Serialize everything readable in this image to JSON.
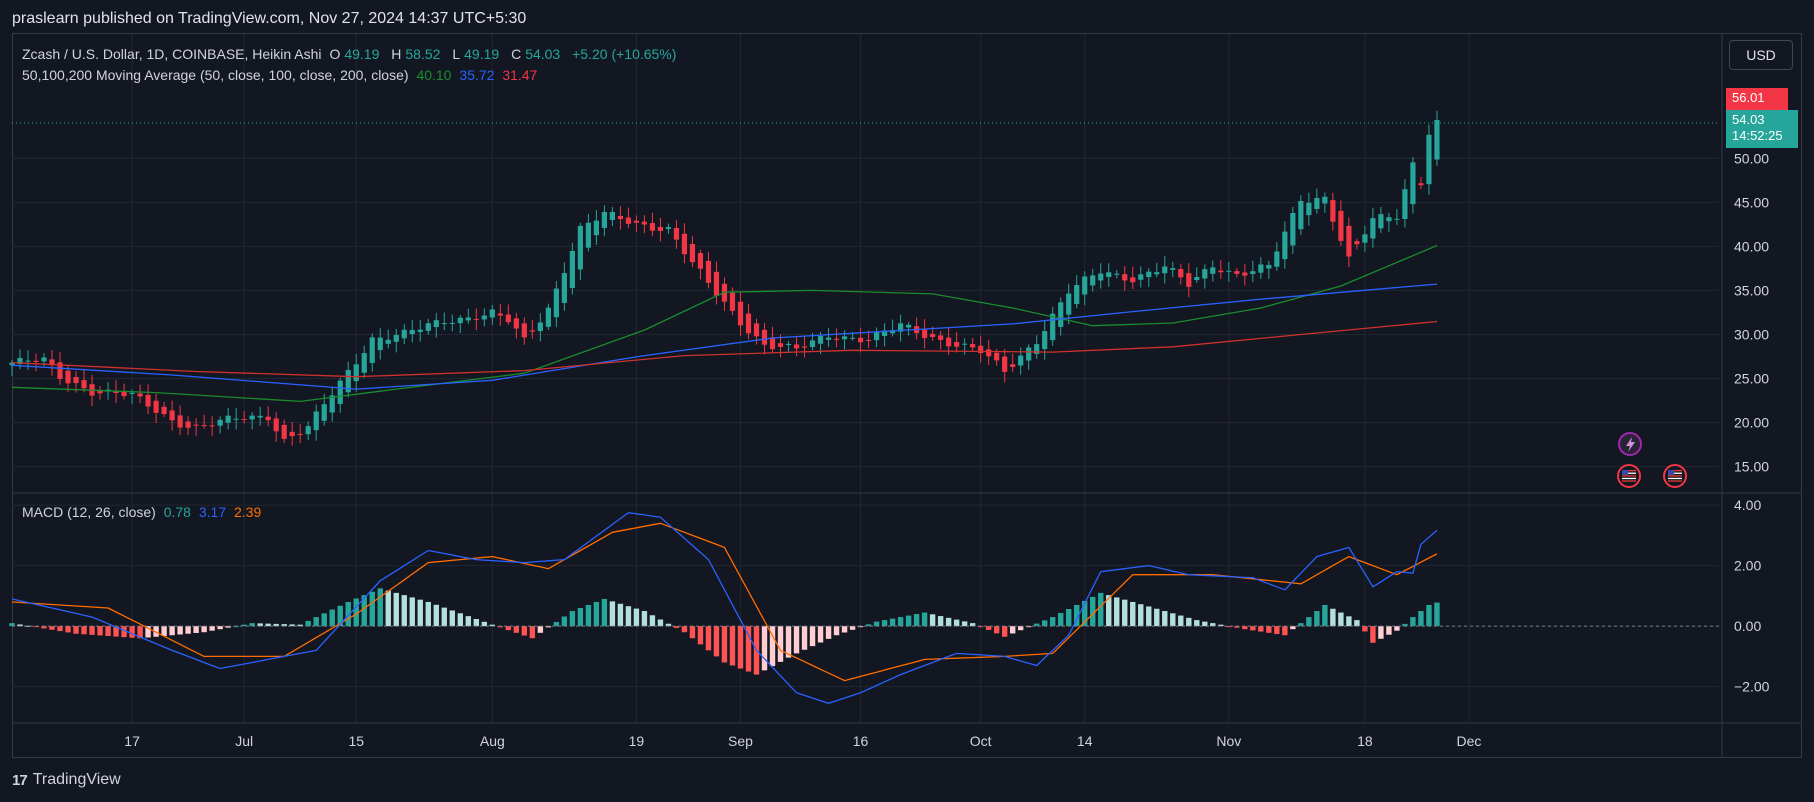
{
  "header": {
    "publish_line": "praslearn published on TradingView.com, Nov 27, 2024 14:37 UTC+5:30"
  },
  "legend": {
    "symbol": "Zcash / U.S. Dollar, 1D, COINBASE, Heikin Ashi",
    "o_label": "O",
    "o_value": "49.19",
    "h_label": "H",
    "h_value": "58.52",
    "l_label": "L",
    "l_value": "49.19",
    "c_label": "C",
    "c_value": "54.03",
    "change": "+5.20 (+10.65%)",
    "ma_label": "50,100,200 Moving Average (50, close, 100, close, 200, close)",
    "ma50": "40.10",
    "ma100": "35.72",
    "ma200": "31.47",
    "macd_label": "MACD (12, 26, close)",
    "hist_val": "0.78",
    "macd_val": "3.17",
    "signal_val": "2.39"
  },
  "currency_button": "USD",
  "price_tags": {
    "high": "56.01",
    "last": "54.03",
    "countdown": "14:52:25"
  },
  "brand": {
    "name": "TradingView",
    "logo_text": "17"
  },
  "colors": {
    "up": "#26a69a",
    "down": "#f23645",
    "ma50": "#1b8c2e",
    "ma100": "#2962ff",
    "ma200": "#d0312d",
    "macd": "#2962ff",
    "signal": "#ff6d00",
    "hist_up_strong": "#26a69a",
    "hist_up_weak": "#b2dfdb",
    "hist_down_strong": "#ff5252",
    "hist_down_weak": "#ffcdd2"
  },
  "chart_data": [
    {
      "type": "candlestick",
      "style": "Heikin Ashi",
      "ylim": [
        12,
        64
      ],
      "y_ticks": [
        15,
        20,
        25,
        30,
        35,
        40,
        45,
        50
      ],
      "x_ticks": [
        {
          "label": "17",
          "date": "2024-06-17"
        },
        {
          "label": "Jul",
          "date": "2024-07-01"
        },
        {
          "label": "15",
          "date": "2024-07-15"
        },
        {
          "label": "Aug",
          "date": "2024-08-01"
        },
        {
          "label": "19",
          "date": "2024-08-19"
        },
        {
          "label": "Sep",
          "date": "2024-09-01"
        },
        {
          "label": "16",
          "date": "2024-09-16"
        },
        {
          "label": "Oct",
          "date": "2024-10-01"
        },
        {
          "label": "14",
          "date": "2024-10-14"
        },
        {
          "label": "Nov",
          "date": "2024-11-01"
        },
        {
          "label": "18",
          "date": "2024-11-18"
        },
        {
          "label": "Dec",
          "date": "2024-12-01"
        }
      ],
      "date_range": [
        "2024-06-02",
        "2024-12-06"
      ],
      "first_date": "2024-06-02",
      "close_points": [
        [
          "2024-06-02",
          26.8
        ],
        [
          "2024-06-06",
          27.0
        ],
        [
          "2024-06-08",
          25.2
        ],
        [
          "2024-06-12",
          23.6
        ],
        [
          "2024-06-17",
          23.0
        ],
        [
          "2024-06-22",
          20.3
        ],
        [
          "2024-06-25",
          19.4
        ],
        [
          "2024-06-30",
          20.4
        ],
        [
          "2024-07-04",
          20.8
        ],
        [
          "2024-07-06",
          18.0
        ],
        [
          "2024-07-09",
          19.4
        ],
        [
          "2024-07-13",
          24.5
        ],
        [
          "2024-07-17",
          29.6
        ],
        [
          "2024-07-21",
          30.0
        ],
        [
          "2024-07-26",
          31.6
        ],
        [
          "2024-08-01",
          32.4
        ],
        [
          "2024-08-03",
          31.5
        ],
        [
          "2024-08-05",
          29.2
        ],
        [
          "2024-08-08",
          33.0
        ],
        [
          "2024-08-12",
          42.0
        ],
        [
          "2024-08-15",
          43.6
        ],
        [
          "2024-08-19",
          42.6
        ],
        [
          "2024-08-23",
          42.0
        ],
        [
          "2024-08-26",
          38.0
        ],
        [
          "2024-08-29",
          34.6
        ],
        [
          "2024-09-01",
          31.5
        ],
        [
          "2024-09-04",
          28.8
        ],
        [
          "2024-09-08",
          28.2
        ],
        [
          "2024-09-12",
          30.0
        ],
        [
          "2024-09-17",
          29.4
        ],
        [
          "2024-09-21",
          31.0
        ],
        [
          "2024-09-26",
          29.4
        ],
        [
          "2024-10-01",
          28.0
        ],
        [
          "2024-10-04",
          25.8
        ],
        [
          "2024-10-08",
          29.4
        ],
        [
          "2024-10-12",
          34.8
        ],
        [
          "2024-10-16",
          37.2
        ],
        [
          "2024-10-20",
          36.4
        ],
        [
          "2024-10-24",
          37.6
        ],
        [
          "2024-10-27",
          35.6
        ],
        [
          "2024-10-30",
          38.0
        ],
        [
          "2024-11-02",
          36.8
        ],
        [
          "2024-11-06",
          37.6
        ],
        [
          "2024-11-10",
          45.4
        ],
        [
          "2024-11-13",
          45.6
        ],
        [
          "2024-11-16",
          38.4
        ],
        [
          "2024-11-19",
          43.0
        ],
        [
          "2024-11-22",
          43.6
        ],
        [
          "2024-11-24",
          49.5
        ],
        [
          "2024-11-25",
          47.4
        ],
        [
          "2024-11-26",
          53.0
        ],
        [
          "2024-11-27",
          54.03
        ]
      ],
      "series": [
        {
          "name": "50",
          "points": [
            [
              "2024-06-02",
              24.0
            ],
            [
              "2024-06-20",
              23.4
            ],
            [
              "2024-07-08",
              22.4
            ],
            [
              "2024-07-20",
              23.8
            ],
            [
              "2024-08-05",
              25.6
            ],
            [
              "2024-08-20",
              30.5
            ],
            [
              "2024-08-30",
              34.8
            ],
            [
              "2024-09-10",
              35.0
            ],
            [
              "2024-09-25",
              34.6
            ],
            [
              "2024-10-05",
              33.0
            ],
            [
              "2024-10-15",
              31.0
            ],
            [
              "2024-10-25",
              31.3
            ],
            [
              "2024-11-05",
              33.0
            ],
            [
              "2024-11-15",
              35.5
            ],
            [
              "2024-11-27",
              40.1
            ]
          ]
        },
        {
          "name": "100",
          "points": [
            [
              "2024-06-02",
              26.5
            ],
            [
              "2024-06-22",
              25.4
            ],
            [
              "2024-07-15",
              23.8
            ],
            [
              "2024-08-01",
              24.8
            ],
            [
              "2024-08-20",
              27.6
            ],
            [
              "2024-09-05",
              29.6
            ],
            [
              "2024-09-20",
              30.4
            ],
            [
              "2024-10-05",
              31.2
            ],
            [
              "2024-10-20",
              32.6
            ],
            [
              "2024-11-05",
              34.0
            ],
            [
              "2024-11-27",
              35.72
            ]
          ]
        },
        {
          "name": "200",
          "points": [
            [
              "2024-06-02",
              26.8
            ],
            [
              "2024-06-25",
              25.8
            ],
            [
              "2024-07-15",
              25.2
            ],
            [
              "2024-08-05",
              25.9
            ],
            [
              "2024-08-25",
              27.6
            ],
            [
              "2024-09-15",
              28.2
            ],
            [
              "2024-10-10",
              28.0
            ],
            [
              "2024-10-25",
              28.6
            ],
            [
              "2024-11-10",
              30.0
            ],
            [
              "2024-11-27",
              31.47
            ]
          ]
        }
      ]
    },
    {
      "type": "macd",
      "ylim": [
        -3.2,
        4.4
      ],
      "y_ticks": [
        4.0,
        2.0,
        0.0,
        -2.0
      ],
      "y_tick_labels": [
        "4.00",
        "2.00",
        "0.00",
        "−2.00"
      ],
      "series": [
        {
          "name": "MACD",
          "points": [
            [
              "2024-06-02",
              0.9
            ],
            [
              "2024-06-12",
              0.3
            ],
            [
              "2024-06-22",
              -0.8
            ],
            [
              "2024-06-28",
              -1.4
            ],
            [
              "2024-07-06",
              -1.0
            ],
            [
              "2024-07-10",
              -0.8
            ],
            [
              "2024-07-18",
              1.5
            ],
            [
              "2024-07-24",
              2.5
            ],
            [
              "2024-07-30",
              2.2
            ],
            [
              "2024-08-05",
              2.1
            ],
            [
              "2024-08-10",
              2.2
            ],
            [
              "2024-08-18",
              3.75
            ],
            [
              "2024-08-22",
              3.6
            ],
            [
              "2024-08-28",
              2.2
            ],
            [
              "2024-09-03",
              -0.8
            ],
            [
              "2024-09-08",
              -2.2
            ],
            [
              "2024-09-12",
              -2.55
            ],
            [
              "2024-09-16",
              -2.2
            ],
            [
              "2024-09-21",
              -1.6
            ],
            [
              "2024-09-28",
              -0.9
            ],
            [
              "2024-10-04",
              -1.0
            ],
            [
              "2024-10-08",
              -1.3
            ],
            [
              "2024-10-12",
              -0.3
            ],
            [
              "2024-10-16",
              1.8
            ],
            [
              "2024-10-22",
              2.0
            ],
            [
              "2024-10-27",
              1.7
            ],
            [
              "2024-11-04",
              1.6
            ],
            [
              "2024-11-08",
              1.2
            ],
            [
              "2024-11-12",
              2.3
            ],
            [
              "2024-11-16",
              2.6
            ],
            [
              "2024-11-19",
              1.3
            ],
            [
              "2024-11-22",
              1.8
            ],
            [
              "2024-11-24",
              1.75
            ],
            [
              "2024-11-25",
              2.7
            ],
            [
              "2024-11-27",
              3.17
            ]
          ]
        },
        {
          "name": "Signal",
          "points": [
            [
              "2024-06-02",
              0.8
            ],
            [
              "2024-06-14",
              0.6
            ],
            [
              "2024-06-26",
              -1.0
            ],
            [
              "2024-07-06",
              -1.0
            ],
            [
              "2024-07-15",
              0.4
            ],
            [
              "2024-07-24",
              2.1
            ],
            [
              "2024-08-01",
              2.3
            ],
            [
              "2024-08-08",
              1.9
            ],
            [
              "2024-08-16",
              3.1
            ],
            [
              "2024-08-22",
              3.4
            ],
            [
              "2024-08-30",
              2.6
            ],
            [
              "2024-09-06",
              -0.8
            ],
            [
              "2024-09-14",
              -1.8
            ],
            [
              "2024-09-24",
              -1.1
            ],
            [
              "2024-10-04",
              -1.0
            ],
            [
              "2024-10-10",
              -0.9
            ],
            [
              "2024-10-20",
              1.7
            ],
            [
              "2024-10-30",
              1.7
            ],
            [
              "2024-11-10",
              1.4
            ],
            [
              "2024-11-16",
              2.3
            ],
            [
              "2024-11-22",
              1.7
            ],
            [
              "2024-11-27",
              2.39
            ]
          ]
        },
        {
          "name": "Histogram",
          "points": [
            [
              "2024-06-02",
              0.1
            ],
            [
              "2024-06-10",
              -0.25
            ],
            [
              "2024-06-18",
              -0.4
            ],
            [
              "2024-06-26",
              -0.2
            ],
            [
              "2024-07-02",
              0.1
            ],
            [
              "2024-07-08",
              0.05
            ],
            [
              "2024-07-14",
              0.8
            ],
            [
              "2024-07-18",
              1.25
            ],
            [
              "2024-07-24",
              0.8
            ],
            [
              "2024-08-01",
              0.05
            ],
            [
              "2024-08-06",
              -0.4
            ],
            [
              "2024-08-11",
              0.5
            ],
            [
              "2024-08-15",
              0.9
            ],
            [
              "2024-08-20",
              0.5
            ],
            [
              "2024-08-25",
              -0.2
            ],
            [
              "2024-08-30",
              -1.2
            ],
            [
              "2024-09-03",
              -1.6
            ],
            [
              "2024-09-08",
              -0.9
            ],
            [
              "2024-09-13",
              -0.3
            ],
            [
              "2024-09-18",
              0.15
            ],
            [
              "2024-09-24",
              0.45
            ],
            [
              "2024-09-30",
              0.1
            ],
            [
              "2024-10-04",
              -0.35
            ],
            [
              "2024-10-10",
              0.3
            ],
            [
              "2024-10-16",
              1.1
            ],
            [
              "2024-10-22",
              0.65
            ],
            [
              "2024-10-28",
              0.2
            ],
            [
              "2024-11-03",
              -0.1
            ],
            [
              "2024-11-08",
              -0.3
            ],
            [
              "2024-11-13",
              0.7
            ],
            [
              "2024-11-17",
              0.2
            ],
            [
              "2024-11-19",
              -0.55
            ],
            [
              "2024-11-22",
              -0.15
            ],
            [
              "2024-11-24",
              0.3
            ],
            [
              "2024-11-26",
              0.7
            ],
            [
              "2024-11-27",
              0.78
            ]
          ]
        }
      ]
    }
  ]
}
